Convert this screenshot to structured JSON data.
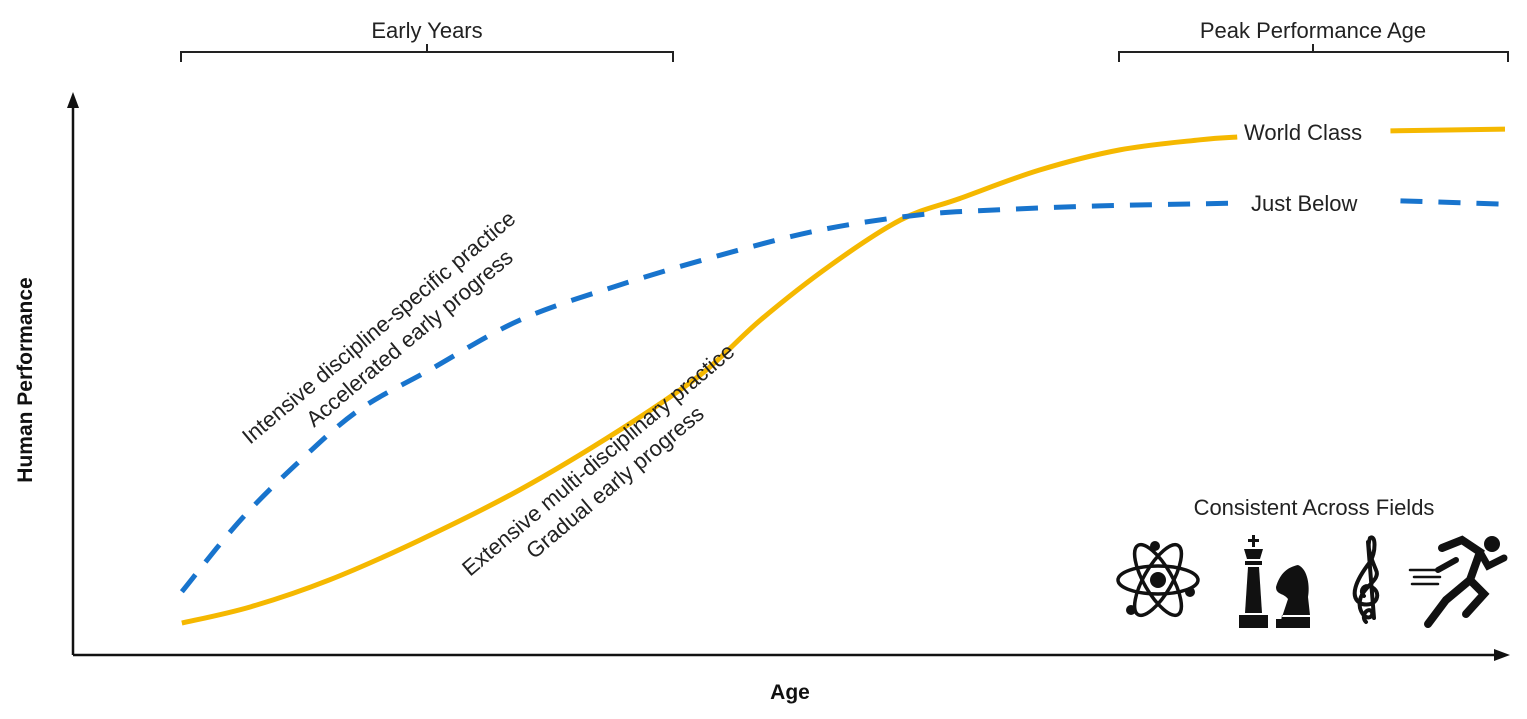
{
  "chart_data": {
    "type": "line",
    "xlabel": "Age",
    "ylabel": "Human Performance",
    "xlim": [
      0,
      100
    ],
    "ylim": [
      0,
      100
    ],
    "grid": false,
    "brackets": [
      {
        "label": "Early Years",
        "range": [
          7.6,
          42
        ]
      },
      {
        "label": "Peak Performance Age",
        "range": [
          73,
          100
        ]
      }
    ],
    "series": [
      {
        "name": "World Class",
        "color": "#F5B800",
        "style": "solid",
        "annotation": [
          "Extensive multi-disciplinary practice",
          "Gradual early progress"
        ],
        "segments": [
          [
            [
              7.6,
              5.7
            ],
            [
              12.4,
              8.6
            ],
            [
              17.9,
              13.4
            ],
            [
              24.2,
              20.5
            ],
            [
              31.2,
              29.5
            ],
            [
              38.2,
              40.2
            ],
            [
              43.8,
              50
            ],
            [
              48,
              59.8
            ],
            [
              52.9,
              69.6
            ],
            [
              57.8,
              77.7
            ],
            [
              61.9,
              81.5
            ],
            [
              67.5,
              86.6
            ],
            [
              73.1,
              90.2
            ],
            [
              78.7,
              92
            ],
            [
              81.3,
              92.5
            ]
          ],
          [
            [
              92,
              93.6
            ],
            [
              100,
              93.9
            ]
          ]
        ]
      },
      {
        "name": "Just Below",
        "color": "#1874CD",
        "style": "dashed",
        "annotation": [
          "Intensive discipline-specific practice",
          "Accelerated early progress"
        ],
        "segments": [
          [
            [
              7.6,
              11.3
            ],
            [
              11.7,
              24.1
            ],
            [
              15.9,
              34.8
            ],
            [
              20,
              43.8
            ],
            [
              24.9,
              50.9
            ],
            [
              31.2,
              59.8
            ],
            [
              38.2,
              66.1
            ],
            [
              45.2,
              71.4
            ],
            [
              52.2,
              75.9
            ],
            [
              59.1,
              78.6
            ],
            [
              64.7,
              79.5
            ],
            [
              71.7,
              80.2
            ],
            [
              81.5,
              80.7
            ]
          ],
          [
            [
              92.7,
              81.1
            ],
            [
              100,
              80.5
            ]
          ]
        ]
      }
    ],
    "inset": {
      "title": "Consistent Across Fields",
      "icons": [
        "atom-icon",
        "chess-icon",
        "treble-clef-icon",
        "runner-icon"
      ]
    }
  }
}
